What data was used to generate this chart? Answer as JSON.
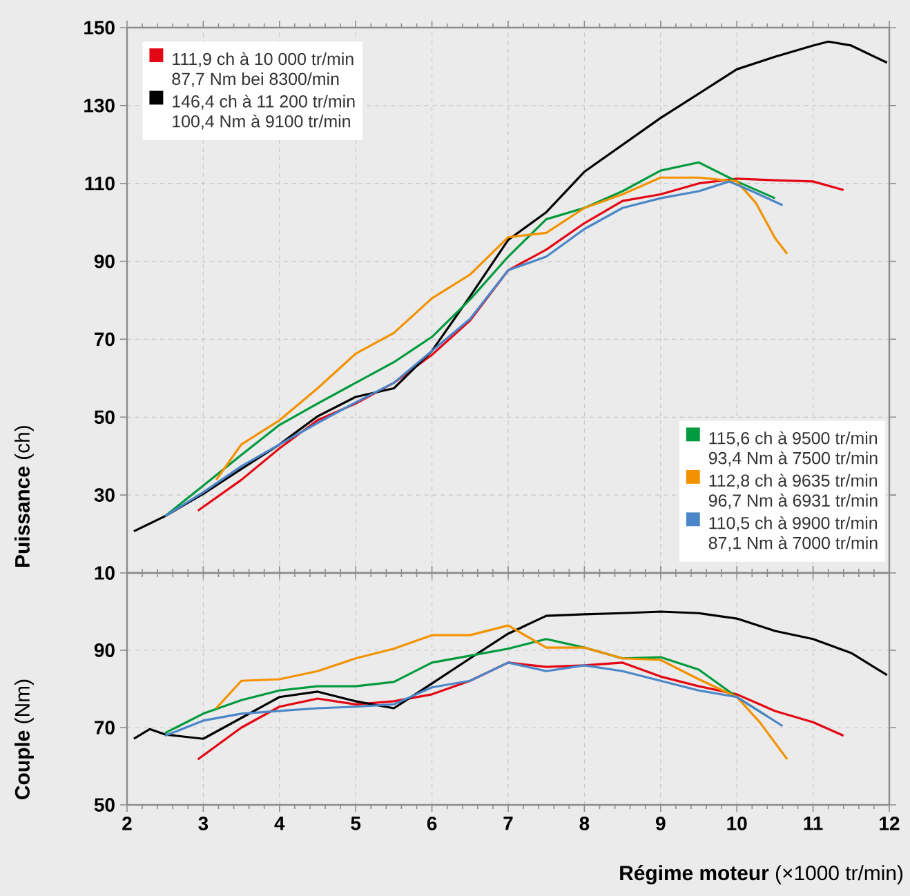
{
  "chart_data": [
    {
      "type": "line",
      "ylabel": "**Puissance** (ch)",
      "xlim": [
        2,
        12
      ],
      "xticks": [
        2,
        3,
        4,
        5,
        6,
        7,
        8,
        9,
        10,
        11,
        12
      ],
      "ylim": [
        10,
        150
      ],
      "yticks": [
        10,
        30,
        50,
        70,
        90,
        110,
        130,
        150
      ],
      "grid": true,
      "legend": "top left",
      "tick_labels": "y",
      "series": [
        {
          "name": "111,9 ch à 10 000 tr/min",
          "color": "#e30613",
          "x": [
            2.93,
            3.5,
            4,
            4.5,
            5,
            5.5,
            6,
            6.5,
            7,
            7.5,
            8,
            8.5,
            9,
            9.5,
            10,
            10.5,
            11,
            11.4
          ],
          "values": [
            26,
            33.9,
            42,
            49.2,
            53.5,
            58.8,
            66,
            74.8,
            87.7,
            93,
            99.8,
            105.5,
            107.2,
            110,
            111.2,
            110.8,
            110.5,
            108.3
          ]
        },
        {
          "name": "146,4 ch à 11 200 tr/min",
          "color": "#000000",
          "x": [
            2.09,
            2.5,
            3,
            3.5,
            4,
            4.5,
            5,
            5.5,
            6,
            6.5,
            7,
            7.5,
            8,
            9,
            10,
            10.5,
            11,
            11.2,
            11.5,
            11.97
          ],
          "values": [
            20.7,
            24.6,
            30.3,
            36.7,
            43,
            50.2,
            55.2,
            57.4,
            67,
            81,
            95.5,
            102.6,
            113,
            126.8,
            139.3,
            142.5,
            145.4,
            146.4,
            145.4,
            141
          ]
        },
        {
          "name": "115,6 ch à 9500 tr/min",
          "color": "#009a3e",
          "x": [
            2.5,
            3,
            3.5,
            4,
            4.5,
            5,
            5.5,
            6,
            6.5,
            7,
            7.5,
            8,
            8.5,
            9,
            9.5,
            10,
            10.5
          ],
          "values": [
            24.6,
            32.4,
            40.3,
            48,
            53.5,
            58.8,
            64.1,
            70.6,
            80.2,
            91.2,
            100.8,
            103.7,
            108,
            113.3,
            115.4,
            110.5,
            106.2
          ]
        },
        {
          "name": "112,8 ch à 9635 tr/min",
          "color": "#f39200",
          "x": [
            3.17,
            3.5,
            4,
            4.5,
            5,
            5.5,
            6,
            6.5,
            7,
            7.5,
            8,
            8.5,
            9,
            9.5,
            10,
            10.25,
            10.5,
            10.66
          ],
          "values": [
            33.9,
            43,
            49.2,
            57.4,
            66.3,
            71.6,
            80.5,
            86.6,
            96.2,
            97.3,
            103.7,
            107.2,
            111.5,
            111.5,
            110.5,
            105,
            96,
            91.9
          ]
        },
        {
          "name": "110,5 ch à 9900 tr/min",
          "color": "#4a86c8",
          "x": [
            2.5,
            3,
            3.5,
            4,
            4.5,
            5,
            5.5,
            6,
            6.5,
            7,
            7.5,
            8,
            8.5,
            9,
            9.5,
            9.9,
            10.2,
            10.6
          ],
          "values": [
            24.6,
            30.7,
            37.4,
            43,
            48.5,
            53.8,
            58.8,
            67,
            75.2,
            87.7,
            91.2,
            98.3,
            103.7,
            106.2,
            108,
            110.5,
            108,
            104.4
          ]
        }
      ]
    },
    {
      "type": "line",
      "ylabel": "**Couple** (Nm)",
      "xlabel": "**Régime moteur** (×1000 tr/min)",
      "xlim": [
        2,
        12
      ],
      "xticks": [
        2,
        3,
        4,
        5,
        6,
        7,
        8,
        9,
        10,
        11,
        12
      ],
      "ylim": [
        50,
        110
      ],
      "yticks": [
        50,
        70,
        90
      ],
      "grid": true,
      "series": [
        {
          "name": "87,7 Nm bei 8300/min",
          "color": "#e30613",
          "x": [
            2.93,
            3.5,
            4,
            4.5,
            5,
            5.5,
            6,
            6.5,
            7,
            7.5,
            8,
            8.5,
            9,
            9.5,
            10,
            10.5,
            11,
            11.4
          ],
          "values": [
            61.8,
            70,
            75.4,
            77.5,
            76,
            76.8,
            78.6,
            82.1,
            86.8,
            85.7,
            86.1,
            86.8,
            83.2,
            80.7,
            78.6,
            74.3,
            71.4,
            67.9
          ]
        },
        {
          "name": "100,4 Nm à 9100 tr/min",
          "color": "#000000",
          "x": [
            2.09,
            2.3,
            2.5,
            3,
            3.5,
            4,
            4.5,
            5,
            5.5,
            6,
            6.5,
            7,
            7.5,
            8,
            8.5,
            9,
            9.5,
            10,
            10.5,
            11,
            11.5,
            11.97
          ],
          "values": [
            67.1,
            69.6,
            68.2,
            67.1,
            72.5,
            77.9,
            79.3,
            76.8,
            75,
            81.4,
            87.9,
            94.3,
            98.9,
            99.3,
            99.6,
            100,
            99.6,
            98.2,
            95,
            92.9,
            89.3,
            83.6
          ]
        },
        {
          "name": "93,4 Nm à 7500 tr/min",
          "color": "#009a3e",
          "x": [
            2.5,
            3,
            3.5,
            4,
            4.5,
            5,
            5.5,
            6,
            6.5,
            7,
            7.5,
            8,
            8.5,
            9,
            9.5,
            10,
            10.4
          ],
          "values": [
            68.6,
            73.6,
            77.1,
            79.6,
            80.7,
            80.7,
            81.8,
            86.8,
            88.6,
            90.4,
            92.9,
            90.7,
            87.9,
            88.2,
            85,
            77.9,
            72.9
          ]
        },
        {
          "name": "96,7 Nm à 6931 tr/min",
          "color": "#f39200",
          "x": [
            3.17,
            3.5,
            4,
            4.5,
            5,
            5.5,
            6,
            6.5,
            7,
            7.5,
            8,
            8.5,
            9,
            9.5,
            10,
            10.3,
            10.66
          ],
          "values": [
            75,
            82.1,
            82.5,
            84.6,
            87.9,
            90.4,
            93.9,
            93.9,
            96.4,
            90.7,
            90.7,
            87.9,
            87.5,
            82.5,
            77.9,
            71.4,
            61.8
          ]
        },
        {
          "name": "87,1 Nm à 7000 tr/min",
          "color": "#4a86c8",
          "x": [
            2.5,
            3,
            3.5,
            4,
            4.5,
            5,
            5.5,
            6,
            6.5,
            7,
            7.5,
            8,
            8.5,
            9,
            9.5,
            10,
            10.6
          ],
          "values": [
            67.9,
            71.8,
            73.6,
            74.3,
            75,
            75.4,
            76,
            80.4,
            82.1,
            86.8,
            84.6,
            86.1,
            84.6,
            82.1,
            79.6,
            77.9,
            70.4
          ]
        }
      ]
    }
  ]
}
